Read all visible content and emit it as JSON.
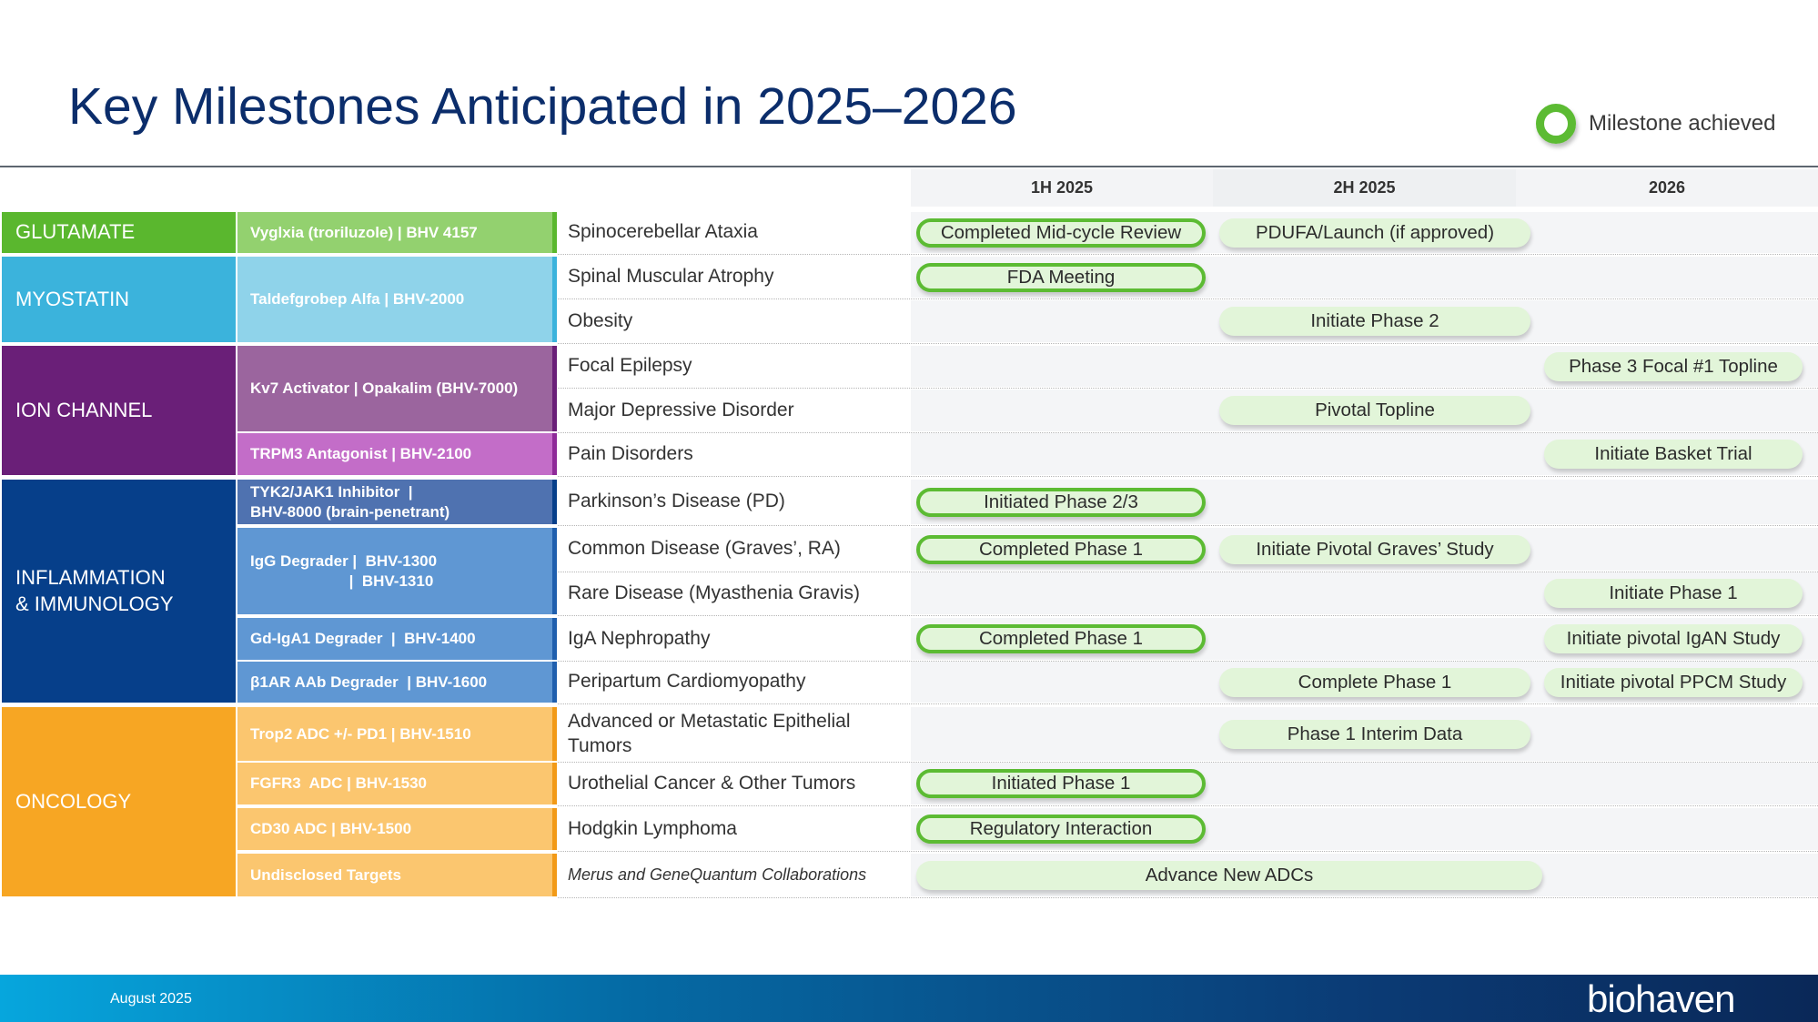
{
  "title": "Key Milestones Anticipated in 2025–2026",
  "legend": {
    "label": "Milestone achieved",
    "icon": "green-ring-icon"
  },
  "periods": [
    "1H 2025",
    "2H 2025",
    "2026"
  ],
  "colors": {
    "achieved_ring": "#5cbb33",
    "pill_fill": "#e2f5d9",
    "title": "#0b2d6b"
  },
  "categories": [
    {
      "label": "GLUTAMATE",
      "color": "#5ab72e",
      "rows": [
        0,
        0
      ]
    },
    {
      "label": "MYOSTATIN",
      "color": "#3bb3dc",
      "rows": [
        1,
        2
      ]
    },
    {
      "label": "ION CHANNEL",
      "color": "#6a1f78",
      "rows": [
        3,
        5
      ]
    },
    {
      "label": "INFLAMMATION & IMMUNOLOGY",
      "color": "#063f8a",
      "rows": [
        6,
        10
      ]
    },
    {
      "label": "ONCOLOGY",
      "color": "#f7a623",
      "rows": [
        11,
        14
      ]
    }
  ],
  "programs": [
    {
      "label": "Vyglxia (troriluzole) | BHV 4157",
      "color": "#93d16f",
      "edge": "#5ab72e",
      "rows": [
        0,
        0
      ]
    },
    {
      "label": "Taldefgrobep Alfa | BHV-2000",
      "color": "#8fd3ea",
      "edge": "#3bb3dc",
      "rows": [
        1,
        2
      ]
    },
    {
      "label": "Kv7 Activator | Opakalim (BHV-7000)",
      "color": "#9b659e",
      "edge": "#6a1f78",
      "rows": [
        3,
        4
      ]
    },
    {
      "label": "TRPM3 Antagonist | BHV-2100",
      "color": "#c36dc8",
      "edge": "#8e2a98",
      "rows": [
        5,
        5
      ]
    },
    {
      "label": "TYK2/JAK1 Inhibitor  |\nBHV-8000 (brain-penetrant)",
      "color": "#4f72b0",
      "edge": "#063f8a",
      "rows": [
        6,
        6
      ]
    },
    {
      "label": "IgG Degrader |  BHV-1300\n                       |  BHV-1310",
      "color": "#5f97d3",
      "edge": "#1f5fae",
      "rows": [
        7,
        8
      ]
    },
    {
      "label": "Gd-IgA1 Degrader  |  BHV-1400",
      "color": "#5f97d3",
      "edge": "#1f5fae",
      "rows": [
        9,
        9
      ]
    },
    {
      "label": "β1AR AAb Degrader  | BHV-1600",
      "color": "#5f97d3",
      "edge": "#1f5fae",
      "rows": [
        10,
        10
      ]
    },
    {
      "label": "Trop2 ADC +/- PD1 | BHV-1510",
      "color": "#fbc66f",
      "edge": "#f29a17",
      "rows": [
        11,
        11
      ]
    },
    {
      "label": "FGFR3  ADC | BHV-1530",
      "color": "#fbc66f",
      "edge": "#f29a17",
      "rows": [
        12,
        12
      ]
    },
    {
      "label": "CD30 ADC | BHV-1500",
      "color": "#fbc66f",
      "edge": "#f29a17",
      "rows": [
        13,
        13
      ]
    },
    {
      "label": "Undisclosed Targets",
      "color": "#fbc66f",
      "edge": "#f29a17",
      "rows": [
        14,
        14
      ]
    }
  ],
  "indications": [
    {
      "label": "Spinocerebellar Ataxia"
    },
    {
      "label": "Spinal Muscular Atrophy"
    },
    {
      "label": "Obesity"
    },
    {
      "label": "Focal Epilepsy"
    },
    {
      "label": "Major Depressive Disorder"
    },
    {
      "label": "Pain Disorders"
    },
    {
      "label": "Parkinson’s Disease (PD)"
    },
    {
      "label": "Common Disease (Graves’, RA)"
    },
    {
      "label": "Rare Disease (Myasthenia Gravis)"
    },
    {
      "label": "IgA Nephropathy"
    },
    {
      "label": "Peripartum Cardiomyopathy"
    },
    {
      "label": "Advanced or Metastatic Epithelial Tumors"
    },
    {
      "label": "Urothelial Cancer & Other Tumors"
    },
    {
      "label": "Hodgkin Lymphoma"
    },
    {
      "label": "Merus and GeneQuantum Collaborations",
      "italic": true
    }
  ],
  "milestones": [
    {
      "row": 0,
      "period": "1H 2025",
      "label": "Completed Mid-cycle Review",
      "achieved": true
    },
    {
      "row": 0,
      "period": "2H 2025",
      "label": "PDUFA/Launch (if approved)",
      "achieved": false
    },
    {
      "row": 1,
      "period": "1H 2025",
      "label": "FDA Meeting",
      "achieved": true
    },
    {
      "row": 2,
      "period": "2H 2025",
      "label": "Initiate Phase 2",
      "achieved": false
    },
    {
      "row": 3,
      "period": "2026",
      "label": "Phase 3 Focal #1 Topline",
      "achieved": false
    },
    {
      "row": 4,
      "period": "2H 2025",
      "label": "Pivotal Topline",
      "achieved": false
    },
    {
      "row": 5,
      "period": "2026",
      "label": "Initiate Basket Trial",
      "achieved": false
    },
    {
      "row": 6,
      "period": "1H 2025",
      "label": "Initiated Phase 2/3",
      "achieved": true
    },
    {
      "row": 7,
      "period": "1H 2025",
      "label": "Completed Phase 1",
      "achieved": true
    },
    {
      "row": 7,
      "period": "2H 2025",
      "label": "Initiate Pivotal Graves’ Study",
      "achieved": false
    },
    {
      "row": 8,
      "period": "2026",
      "label": "Initiate Phase 1",
      "achieved": false
    },
    {
      "row": 9,
      "period": "1H 2025",
      "label": "Completed Phase 1",
      "achieved": true
    },
    {
      "row": 9,
      "period": "2026",
      "label": "Initiate pivotal IgAN Study",
      "achieved": false
    },
    {
      "row": 10,
      "period": "2H 2025",
      "label": "Complete Phase 1",
      "achieved": false
    },
    {
      "row": 10,
      "period": "2026",
      "label": "Initiate pivotal PPCM Study",
      "achieved": false
    },
    {
      "row": 11,
      "period": "2H 2025",
      "label": "Phase 1 Interim Data",
      "achieved": false
    },
    {
      "row": 12,
      "period": "1H 2025",
      "label": "Initiated Phase 1",
      "achieved": true
    },
    {
      "row": 13,
      "period": "1H 2025",
      "label": "Regulatory Interaction",
      "achieved": true
    },
    {
      "row": 14,
      "period": "1H–2H 2025",
      "label": "Advance New ADCs",
      "achieved": false
    }
  ],
  "footer": {
    "date": "August 2025",
    "logo": "biohaven"
  }
}
